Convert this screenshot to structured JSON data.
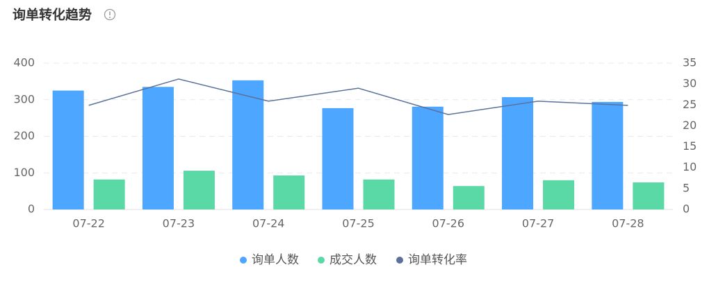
{
  "chart_data": {
    "type": "bar-line",
    "title": "询单转化趋势",
    "categories": [
      "07-22",
      "07-23",
      "07-24",
      "07-25",
      "07-26",
      "07-27",
      "07-28"
    ],
    "series": [
      {
        "name": "询单人数",
        "type": "bar",
        "color": "#4da6ff",
        "values": [
          325,
          335,
          353,
          277,
          281,
          307,
          294
        ]
      },
      {
        "name": "成交人数",
        "type": "bar",
        "color": "#5ad8a6",
        "values": [
          82,
          106,
          93,
          82,
          64,
          80,
          74
        ]
      },
      {
        "name": "询单转化率",
        "type": "line",
        "axis": "y2",
        "color": "#5b7199",
        "values": [
          24.9,
          31.2,
          25.9,
          29.0,
          22.7,
          25.9,
          24.9
        ]
      }
    ],
    "ylim": [
      0,
      400
    ],
    "yticks": [
      0,
      100,
      200,
      300,
      400
    ],
    "y2lim": [
      0,
      35
    ],
    "y2ticks": [
      0,
      5,
      10,
      15,
      20,
      25,
      30,
      35
    ],
    "grid": true,
    "legend": "bottom"
  }
}
